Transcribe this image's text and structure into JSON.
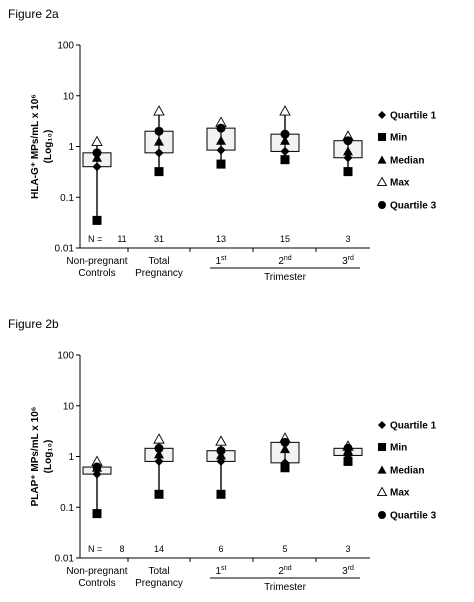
{
  "chart_data": [
    {
      "type": "box",
      "title": "Figure  2a",
      "ylabel": "HLA-G⁺ MPs/mL x 10⁶ (Log₁₀)",
      "yscale": "log",
      "ylim": [
        0.01,
        100
      ],
      "yticks": [
        "0.01",
        "0.1",
        "1",
        "10",
        "100"
      ],
      "categories": [
        "Non-pregnant Controls",
        "Total Pregnancy",
        "1st",
        "2nd",
        "3rd"
      ],
      "category_lines": [
        [
          "Non-pregnant",
          "Controls"
        ],
        [
          "Total",
          "Pregnancy"
        ],
        [
          "1",
          "st"
        ],
        [
          "2",
          "nd"
        ],
        [
          "3",
          "rd"
        ]
      ],
      "group_label": "Trimester",
      "n_label": "N =",
      "n": [
        "11",
        "31",
        "13",
        "15",
        "3"
      ],
      "series": [
        {
          "name": "Quartile 1",
          "values": [
            0.4,
            0.75,
            0.85,
            0.8,
            0.6
          ]
        },
        {
          "name": "Min",
          "values": [
            0.035,
            0.32,
            0.45,
            0.55,
            0.32
          ]
        },
        {
          "name": "Median",
          "values": [
            0.6,
            1.25,
            1.3,
            1.3,
            0.8
          ]
        },
        {
          "name": "Max",
          "values": [
            1.25,
            5.0,
            3.0,
            5.0,
            1.6
          ]
        },
        {
          "name": "Quartile 3",
          "values": [
            0.75,
            2.0,
            2.3,
            1.75,
            1.3
          ]
        }
      ],
      "legend_position": "right"
    },
    {
      "type": "box",
      "title": "Figure  2b",
      "ylabel": "PLAP⁺ MPs/mL x 10⁶ (Log₁₀)",
      "yscale": "log",
      "ylim": [
        0.01,
        100
      ],
      "yticks": [
        "0.01",
        "0.1",
        "1",
        "10",
        "100"
      ],
      "categories": [
        "Non-pregnant Controls",
        "Total Pregnancy",
        "1st",
        "2nd",
        "3rd"
      ],
      "category_lines": [
        [
          "Non-pregnant",
          "Controls"
        ],
        [
          "Total",
          "Pregnancy"
        ],
        [
          "1",
          "st"
        ],
        [
          "2",
          "nd"
        ],
        [
          "3",
          "rd"
        ]
      ],
      "group_label": "Trimester",
      "n_label": "N =",
      "n": [
        "8",
        "14",
        "6",
        "5",
        "3"
      ],
      "series": [
        {
          "name": "Quartile 1",
          "values": [
            0.45,
            0.8,
            0.8,
            0.75,
            1.05
          ]
        },
        {
          "name": "Min",
          "values": [
            0.075,
            0.18,
            0.18,
            0.6,
            0.8
          ]
        },
        {
          "name": "Median",
          "values": [
            0.6,
            1.1,
            1.05,
            1.4,
            1.3
          ]
        },
        {
          "name": "Max",
          "values": [
            0.8,
            2.2,
            2.0,
            2.3,
            1.6
          ]
        },
        {
          "name": "Quartile 3",
          "values": [
            0.62,
            1.45,
            1.3,
            1.9,
            1.45
          ]
        }
      ],
      "legend_position": "right"
    }
  ]
}
